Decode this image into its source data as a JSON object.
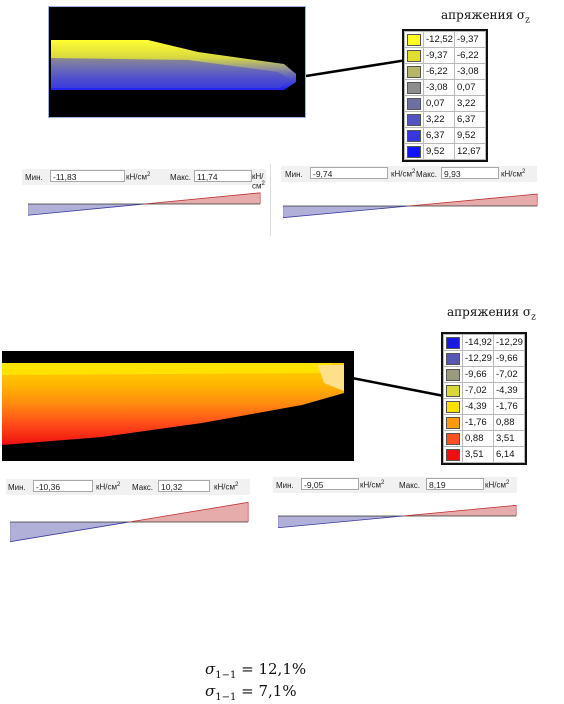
{
  "section1": {
    "legend_title": "апряжения σ",
    "legend_title_sub": "z",
    "legend_rows": [
      {
        "from": "-12,52",
        "to": "-9,37",
        "color": "#ffff20"
      },
      {
        "from": "-9,37",
        "to": "-6,22",
        "color": "#e0df2e"
      },
      {
        "from": "-6,22",
        "to": "-3,08",
        "color": "#b6b66a"
      },
      {
        "from": "-3,08",
        "to": "0,07",
        "color": "#8d8d8d"
      },
      {
        "from": "0,07",
        "to": "3,22",
        "color": "#6f6fa4"
      },
      {
        "from": "3,22",
        "to": "6,37",
        "color": "#5353c2"
      },
      {
        "from": "6,37",
        "to": "9,52",
        "color": "#3636dc"
      },
      {
        "from": "9,52",
        "to": "12,67",
        "color": "#1212ff"
      }
    ],
    "bars": [
      {
        "min_label": "Мин.",
        "min": "-11,83",
        "max_label": "Макс.",
        "max": "11,74",
        "unit": "кН/см",
        "unit_sup": "2"
      },
      {
        "min_label": "Мин.",
        "min": "-9,74",
        "max_label": "Макс.",
        "max": "9,93",
        "unit": "кН/см",
        "unit_sup": "2"
      }
    ]
  },
  "section2": {
    "legend_title": "апряжения σ",
    "legend_title_sub": "z",
    "legend_rows": [
      {
        "from": "-14,92",
        "to": "-12,29",
        "color": "#1a1ae0"
      },
      {
        "from": "-12,29",
        "to": "-9,66",
        "color": "#5858b4"
      },
      {
        "from": "-9,66",
        "to": "-7,02",
        "color": "#9a9a80"
      },
      {
        "from": "-7,02",
        "to": "-4,39",
        "color": "#d8d838"
      },
      {
        "from": "-4,39",
        "to": "-1,76",
        "color": "#ffe000"
      },
      {
        "from": "-1,76",
        "to": "0,88",
        "color": "#ff9a10"
      },
      {
        "from": "0,88",
        "to": "3,51",
        "color": "#ff5020"
      },
      {
        "from": "3,51",
        "to": "6,14",
        "color": "#ee1010"
      }
    ],
    "bars": [
      {
        "min_label": "Мин.",
        "min": "-10,36",
        "max_label": "Макс.",
        "max": "10,32",
        "unit": "кН/см",
        "unit_sup": "2"
      },
      {
        "min_label": "Мин.",
        "min": "-9,05",
        "max_label": "Макс.",
        "max": "8,19",
        "unit": "кН/см",
        "unit_sup": "2"
      }
    ]
  },
  "formulas": [
    {
      "symbol": "σ",
      "sub": "1−1",
      "rest": " = 12,1%"
    },
    {
      "symbol": "σ",
      "sub": "1−1",
      "rest": " = 7,1%"
    }
  ],
  "colors": {
    "blue_hatch": "#3a3aa0",
    "red_hatch": "#c03030"
  }
}
